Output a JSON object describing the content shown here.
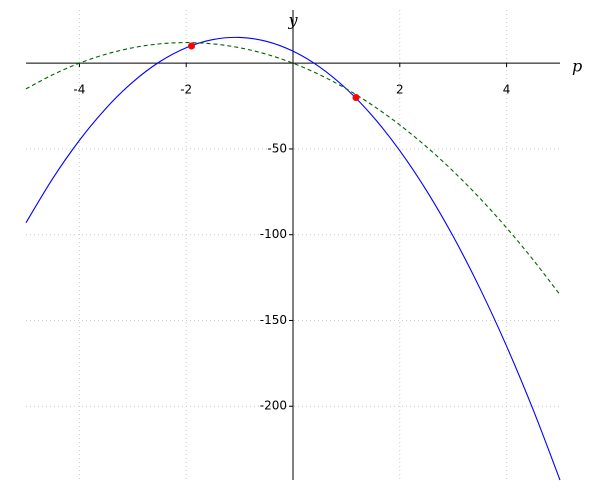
{
  "chart_data": {
    "type": "line",
    "xlabel": "p",
    "ylabel": "y",
    "x": [
      -5,
      -4.5,
      -4,
      -3.5,
      -3,
      -2.5,
      -2,
      -1.5,
      -1,
      -0.5,
      0,
      0.5,
      1,
      1.5,
      2,
      2.5,
      3,
      3.5,
      4,
      4.5,
      5
    ],
    "series": [
      {
        "color": "#0000ff",
        "dash": false,
        "values": [
          -93,
          -67.25,
          -45,
          -26.25,
          -11,
          0.75,
          9,
          13.75,
          15,
          12.75,
          7,
          -2.25,
          -15,
          -31.25,
          -51,
          -74.25,
          -101,
          -131.25,
          -165,
          -202.25,
          -243
        ]
      },
      {
        "color": "#006400",
        "dash": true,
        "values": [
          -15,
          -6.75,
          0,
          5.25,
          9,
          11.25,
          12,
          11.25,
          9,
          5.25,
          0,
          -6.75,
          -15,
          -24.75,
          -36,
          -48.75,
          -63,
          -78.75,
          -96,
          -114.75,
          -135
        ]
      }
    ],
    "points": {
      "color": "#ff0000",
      "x": [
        -1.9,
        1.18
      ],
      "values": [
        10,
        -20
      ]
    },
    "xlim": [
      -5,
      5
    ],
    "ylim": [
      -243,
      31
    ],
    "xticks": [
      -4,
      -2,
      2,
      4
    ],
    "yticks": [
      -50,
      -100,
      -150,
      -200
    ],
    "grid": true
  }
}
